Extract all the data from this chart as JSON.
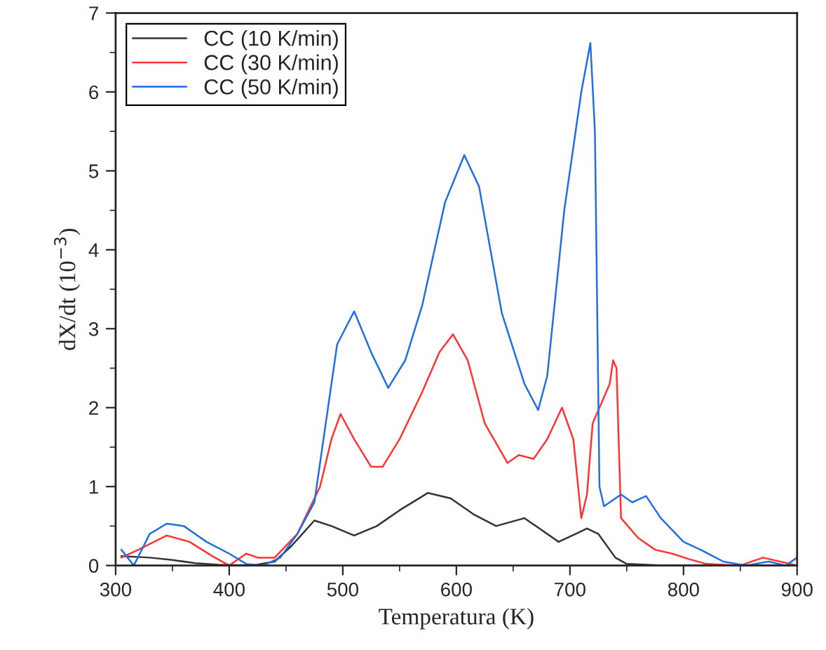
{
  "chart_data": {
    "type": "line",
    "xlabel": "Temperatura (K)",
    "ylabel": "dX/dt (10$^{−3}$)",
    "xlim": [
      300,
      900
    ],
    "xticks": [
      300,
      400,
      500,
      600,
      700,
      800,
      900
    ],
    "ylim": [
      0,
      7
    ],
    "yticks": [
      0,
      1,
      2,
      3,
      4,
      5,
      6,
      7
    ],
    "legend": "top left",
    "grid": false,
    "series": [
      {
        "name": "CC (10 K/min)",
        "color": "#333333",
        "x": [
          305,
          330,
          350,
          370,
          390,
          420,
          440,
          455,
          475,
          490,
          510,
          530,
          550,
          575,
          595,
          615,
          635,
          660,
          675,
          690,
          705,
          715,
          725,
          740,
          750,
          780,
          900
        ],
        "values": [
          0.12,
          0.1,
          0.07,
          0.03,
          0.01,
          0,
          0.05,
          0.25,
          0.57,
          0.5,
          0.38,
          0.5,
          0.7,
          0.92,
          0.85,
          0.65,
          0.5,
          0.6,
          0.45,
          0.3,
          0.4,
          0.47,
          0.4,
          0.1,
          0.02,
          0,
          0
        ]
      },
      {
        "name": "CC (30 K/min)",
        "color": "#ff3333",
        "x": [
          305,
          320,
          345,
          365,
          385,
          400,
          415,
          425,
          440,
          460,
          480,
          490,
          498,
          510,
          525,
          535,
          550,
          570,
          585,
          597,
          610,
          625,
          645,
          655,
          668,
          680,
          693,
          703,
          710,
          715,
          720,
          735,
          738,
          741,
          745,
          760,
          775,
          790,
          805,
          820,
          850,
          870,
          885,
          900
        ],
        "values": [
          0.1,
          0.2,
          0.38,
          0.3,
          0.12,
          0,
          0.15,
          0.1,
          0.1,
          0.4,
          1.0,
          1.6,
          1.92,
          1.6,
          1.25,
          1.25,
          1.6,
          2.2,
          2.7,
          2.93,
          2.6,
          1.8,
          1.3,
          1.4,
          1.35,
          1.6,
          2.0,
          1.6,
          0.6,
          0.9,
          1.8,
          2.3,
          2.6,
          2.5,
          0.6,
          0.35,
          0.2,
          0.15,
          0.08,
          0.02,
          0,
          0.1,
          0.05,
          0
        ]
      },
      {
        "name": "CC (50 K/min)",
        "color": "#1f6fe0",
        "x": [
          305,
          316,
          330,
          345,
          360,
          380,
          400,
          415,
          430,
          445,
          460,
          475,
          485,
          495,
          510,
          525,
          540,
          555,
          570,
          590,
          607,
          620,
          640,
          660,
          672,
          680,
          695,
          710,
          718,
          722,
          726,
          730,
          745,
          755,
          767,
          780,
          800,
          815,
          835,
          855,
          875,
          890,
          900
        ],
        "values": [
          0.2,
          0.0,
          0.4,
          0.53,
          0.5,
          0.3,
          0.15,
          0.02,
          0,
          0.1,
          0.4,
          0.8,
          1.8,
          2.8,
          3.22,
          2.7,
          2.25,
          2.6,
          3.3,
          4.6,
          5.2,
          4.8,
          3.2,
          2.3,
          1.97,
          2.4,
          4.5,
          6.0,
          6.62,
          5.5,
          1.0,
          0.75,
          0.9,
          0.8,
          0.88,
          0.6,
          0.3,
          0.2,
          0.05,
          0,
          0.05,
          0,
          0.1
        ]
      }
    ]
  }
}
